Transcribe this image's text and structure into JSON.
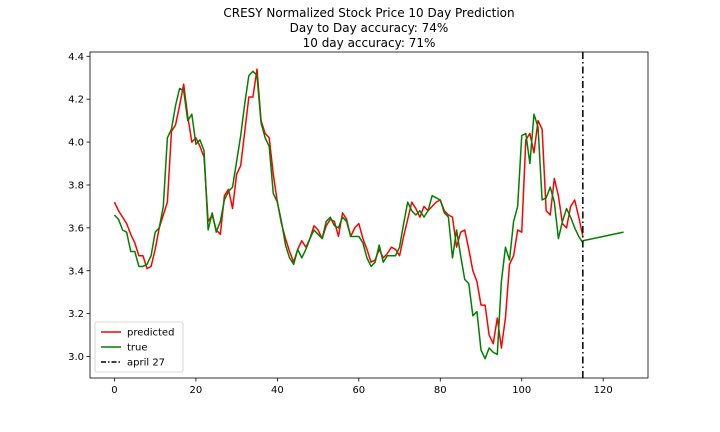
{
  "chart_data": {
    "type": "line",
    "title_lines": [
      "CRESY Normalized Stock Price 10 Day Prediction",
      "Day to Day accuracy: 74%",
      "10 day accuracy: 71%"
    ],
    "xlabel": "",
    "ylabel": "",
    "xlim": [
      -6,
      131
    ],
    "ylim": [
      2.9,
      4.42
    ],
    "xticks": [
      0,
      20,
      40,
      60,
      80,
      100,
      120
    ],
    "yticks": [
      3.0,
      3.2,
      3.4,
      3.6,
      3.8,
      4.0,
      4.2,
      4.4
    ],
    "ytick_labels": [
      "3.0",
      "3.2",
      "3.4",
      "3.6",
      "3.8",
      "4.0",
      "4.2",
      "4.4"
    ],
    "grid": false,
    "legend_placement": "bottom-left",
    "series": [
      {
        "name": "predicted",
        "color": "#ff0000",
        "style": "solid",
        "x": [
          0,
          1,
          2,
          3,
          4,
          5,
          6,
          7,
          8,
          9,
          10,
          11,
          12,
          13,
          14,
          15,
          16,
          17,
          18,
          19,
          20,
          21,
          22,
          23,
          24,
          25,
          26,
          27,
          28,
          29,
          30,
          31,
          32,
          33,
          34,
          35,
          36,
          37,
          38,
          39,
          40,
          41,
          42,
          43,
          44,
          45,
          46,
          47,
          48,
          49,
          50,
          51,
          52,
          53,
          54,
          55,
          56,
          57,
          58,
          59,
          60,
          61,
          62,
          63,
          64,
          65,
          66,
          67,
          68,
          69,
          70,
          71,
          72,
          73,
          74,
          75,
          76,
          77,
          78,
          79,
          80,
          81,
          82,
          83,
          84,
          85,
          86,
          87,
          88,
          89,
          90,
          91,
          92,
          93,
          94,
          95,
          96,
          97,
          98,
          99,
          100,
          101,
          102,
          103,
          104,
          105,
          106,
          107,
          108,
          109,
          110,
          111,
          112,
          113,
          114,
          115
        ],
        "y": [
          3.72,
          3.68,
          3.65,
          3.62,
          3.57,
          3.53,
          3.47,
          3.47,
          3.41,
          3.42,
          3.5,
          3.6,
          3.66,
          3.72,
          4.05,
          4.08,
          4.17,
          4.27,
          4.12,
          4.0,
          4.02,
          3.98,
          3.93,
          3.63,
          3.66,
          3.59,
          3.57,
          3.75,
          3.78,
          3.69,
          3.85,
          3.89,
          4.05,
          4.21,
          4.21,
          4.34,
          4.1,
          4.04,
          4.02,
          3.85,
          3.72,
          3.62,
          3.55,
          3.49,
          3.44,
          3.5,
          3.54,
          3.51,
          3.55,
          3.61,
          3.59,
          3.55,
          3.61,
          3.64,
          3.63,
          3.56,
          3.67,
          3.64,
          3.56,
          3.6,
          3.62,
          3.55,
          3.5,
          3.44,
          3.45,
          3.5,
          3.46,
          3.48,
          3.51,
          3.5,
          3.47,
          3.56,
          3.64,
          3.72,
          3.69,
          3.65,
          3.7,
          3.68,
          3.7,
          3.72,
          3.73,
          3.68,
          3.66,
          3.65,
          3.51,
          3.58,
          3.59,
          3.5,
          3.4,
          3.35,
          3.24,
          3.24,
          3.1,
          3.06,
          3.18,
          3.04,
          3.18,
          3.43,
          3.47,
          3.59,
          3.58,
          4.01,
          4.04,
          3.95,
          4.1,
          4.06,
          3.68,
          3.66,
          3.83,
          3.75,
          3.62,
          3.6,
          3.7,
          3.73,
          3.65,
          3.56
        ]
      },
      {
        "name": "true",
        "color": "#008000",
        "style": "solid",
        "x": [
          0,
          1,
          2,
          3,
          4,
          5,
          6,
          7,
          8,
          9,
          10,
          11,
          12,
          13,
          14,
          15,
          16,
          17,
          18,
          19,
          20,
          21,
          22,
          23,
          24,
          25,
          26,
          27,
          28,
          29,
          30,
          31,
          32,
          33,
          34,
          35,
          36,
          37,
          38,
          39,
          40,
          41,
          42,
          43,
          44,
          45,
          46,
          47,
          48,
          49,
          50,
          51,
          52,
          53,
          54,
          55,
          56,
          57,
          58,
          59,
          60,
          61,
          62,
          63,
          64,
          65,
          66,
          67,
          68,
          69,
          70,
          71,
          72,
          73,
          74,
          75,
          76,
          77,
          78,
          79,
          80,
          81,
          82,
          83,
          84,
          85,
          86,
          87,
          88,
          89,
          90,
          91,
          92,
          93,
          94,
          95,
          96,
          97,
          98,
          99,
          100,
          101,
          102,
          103,
          104,
          105,
          106,
          107,
          108,
          109,
          110,
          111,
          112,
          113,
          114,
          115
        ],
        "y": [
          3.66,
          3.64,
          3.59,
          3.58,
          3.49,
          3.49,
          3.42,
          3.42,
          3.43,
          3.47,
          3.58,
          3.6,
          3.7,
          4.02,
          4.06,
          4.17,
          4.25,
          4.24,
          4.1,
          4.13,
          3.99,
          4.01,
          3.96,
          3.59,
          3.67,
          3.58,
          3.63,
          3.73,
          3.77,
          3.79,
          3.91,
          4.03,
          4.18,
          4.31,
          4.33,
          4.31,
          4.09,
          4.02,
          3.98,
          3.76,
          3.72,
          3.63,
          3.52,
          3.46,
          3.43,
          3.5,
          3.46,
          3.5,
          3.55,
          3.59,
          3.57,
          3.55,
          3.63,
          3.65,
          3.61,
          3.6,
          3.65,
          3.63,
          3.56,
          3.56,
          3.56,
          3.53,
          3.46,
          3.42,
          3.44,
          3.52,
          3.44,
          3.47,
          3.47,
          3.47,
          3.51,
          3.62,
          3.72,
          3.68,
          3.66,
          3.68,
          3.65,
          3.68,
          3.75,
          3.74,
          3.73,
          3.67,
          3.65,
          3.46,
          3.59,
          3.47,
          3.36,
          3.34,
          3.19,
          3.21,
          3.03,
          2.99,
          3.04,
          3.02,
          3.01,
          3.35,
          3.51,
          3.45,
          3.63,
          3.7,
          4.03,
          4.04,
          3.9,
          4.13,
          4.07,
          3.73,
          3.74,
          3.79,
          3.72,
          3.55,
          3.63,
          3.69,
          3.65,
          3.6,
          3.56,
          3.53
        ]
      },
      {
        "name": "",
        "color": "#008000",
        "style": "solid",
        "x": [
          115,
          125
        ],
        "y": [
          3.54,
          3.58
        ]
      }
    ],
    "vlines": [
      {
        "name": "april 27",
        "x": 115,
        "color": "#000000",
        "style": "dashdot"
      }
    ],
    "legend": [
      {
        "label": "predicted",
        "color": "#ff0000",
        "style": "solid"
      },
      {
        "label": "true",
        "color": "#008000",
        "style": "solid"
      },
      {
        "label": "april 27",
        "color": "#000000",
        "style": "dashdot"
      }
    ]
  }
}
